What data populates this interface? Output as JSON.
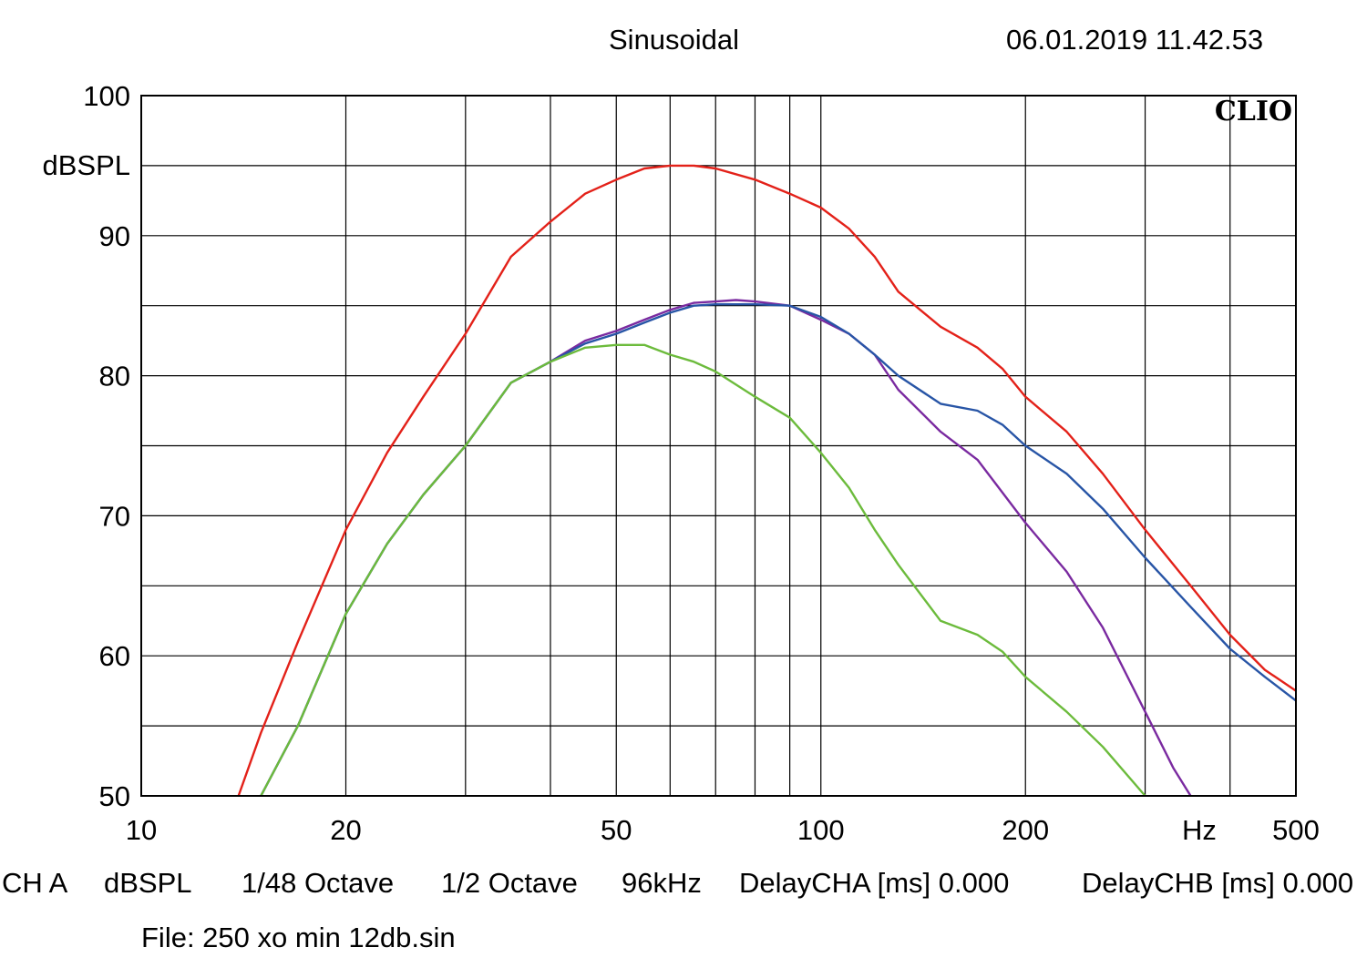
{
  "header": {
    "title": "Sinusoidal",
    "timestamp": "06.01.2019 11.42.53"
  },
  "footer": {
    "channel": "CH A",
    "unit": "dBSPL",
    "resolution": "1/48 Octave",
    "smoothing": "1/2 Octave",
    "sample_rate": "96kHz",
    "delay_a": "DelayCHA [ms] 0.000",
    "delay_b": "DelayCHB [ms] 0.000",
    "file": "File: 250 xo min 12db.sin"
  },
  "brand": "CLIO",
  "chart_data": {
    "type": "line",
    "title": "Sinusoidal",
    "xlabel": "Hz",
    "ylabel": "dBSPL",
    "xscale": "log",
    "xlim": [
      10,
      500
    ],
    "ylim": [
      50,
      100
    ],
    "grid": true,
    "x_tick_labels": [
      {
        "value": 10,
        "label": "10"
      },
      {
        "value": 20,
        "label": "20"
      },
      {
        "value": 50,
        "label": "50"
      },
      {
        "value": 100,
        "label": "100"
      },
      {
        "value": 200,
        "label": "200"
      },
      {
        "value": 500,
        "label": "500"
      }
    ],
    "x_grid": [
      20,
      30,
      40,
      50,
      60,
      70,
      80,
      90,
      100,
      200,
      300,
      400
    ],
    "y_tick_labels": [
      {
        "value": 100,
        "label": "100"
      },
      {
        "value": 90,
        "label": "90"
      },
      {
        "value": 80,
        "label": "80"
      },
      {
        "value": 70,
        "label": "70"
      },
      {
        "value": 60,
        "label": "60"
      },
      {
        "value": 50,
        "label": "50"
      }
    ],
    "y_grid": [
      55,
      60,
      65,
      70,
      75,
      80,
      85,
      90,
      95
    ],
    "series": [
      {
        "color": "#e32119",
        "points": [
          [
            13.9,
            50
          ],
          [
            15,
            54.5
          ],
          [
            17,
            61
          ],
          [
            20,
            69
          ],
          [
            23,
            74.5
          ],
          [
            26,
            78.5
          ],
          [
            30,
            83
          ],
          [
            35,
            88.5
          ],
          [
            40,
            91
          ],
          [
            45,
            93
          ],
          [
            50,
            94
          ],
          [
            55,
            94.8
          ],
          [
            60,
            95
          ],
          [
            65,
            95
          ],
          [
            70,
            94.8
          ],
          [
            80,
            94
          ],
          [
            90,
            93
          ],
          [
            100,
            92
          ],
          [
            110,
            90.5
          ],
          [
            120,
            88.5
          ],
          [
            130,
            86
          ],
          [
            150,
            83.5
          ],
          [
            170,
            82
          ],
          [
            185,
            80.5
          ],
          [
            200,
            78.5
          ],
          [
            230,
            76
          ],
          [
            260,
            73
          ],
          [
            300,
            69
          ],
          [
            350,
            65
          ],
          [
            400,
            61.5
          ],
          [
            450,
            59
          ],
          [
            500,
            57.5
          ]
        ]
      },
      {
        "color": "#7a2aa0",
        "points": [
          [
            15,
            50
          ],
          [
            17,
            55
          ],
          [
            20,
            63
          ],
          [
            23,
            68
          ],
          [
            26,
            71.5
          ],
          [
            30,
            75
          ],
          [
            35,
            79.5
          ],
          [
            40,
            81
          ],
          [
            45,
            82.5
          ],
          [
            50,
            83.2
          ],
          [
            55,
            84
          ],
          [
            60,
            84.7
          ],
          [
            65,
            85.2
          ],
          [
            70,
            85.3
          ],
          [
            75,
            85.4
          ],
          [
            80,
            85.3
          ],
          [
            90,
            85
          ],
          [
            100,
            84
          ],
          [
            110,
            83
          ],
          [
            120,
            81.5
          ],
          [
            130,
            79
          ],
          [
            150,
            76
          ],
          [
            170,
            74
          ],
          [
            200,
            69.5
          ],
          [
            230,
            66
          ],
          [
            260,
            62
          ],
          [
            300,
            56
          ],
          [
            330,
            52
          ],
          [
            350,
            50
          ]
        ]
      },
      {
        "color": "#2855a6",
        "points": [
          [
            15,
            50
          ],
          [
            17,
            55
          ],
          [
            20,
            63
          ],
          [
            23,
            68
          ],
          [
            26,
            71.5
          ],
          [
            30,
            75
          ],
          [
            35,
            79.5
          ],
          [
            40,
            81
          ],
          [
            45,
            82.3
          ],
          [
            50,
            83
          ],
          [
            55,
            83.8
          ],
          [
            60,
            84.5
          ],
          [
            65,
            85
          ],
          [
            70,
            85.1
          ],
          [
            75,
            85.1
          ],
          [
            80,
            85.1
          ],
          [
            90,
            85
          ],
          [
            100,
            84.2
          ],
          [
            110,
            83
          ],
          [
            120,
            81.5
          ],
          [
            130,
            80
          ],
          [
            150,
            78
          ],
          [
            170,
            77.5
          ],
          [
            185,
            76.5
          ],
          [
            200,
            75
          ],
          [
            230,
            73
          ],
          [
            260,
            70.5
          ],
          [
            300,
            67
          ],
          [
            350,
            63.5
          ],
          [
            400,
            60.5
          ],
          [
            450,
            58.5
          ],
          [
            500,
            56.8
          ]
        ]
      },
      {
        "color": "#6cbb3c",
        "points": [
          [
            15,
            50
          ],
          [
            17,
            55
          ],
          [
            20,
            63
          ],
          [
            23,
            68
          ],
          [
            26,
            71.5
          ],
          [
            30,
            75
          ],
          [
            35,
            79.5
          ],
          [
            40,
            81
          ],
          [
            45,
            82
          ],
          [
            50,
            82.2
          ],
          [
            55,
            82.2
          ],
          [
            60,
            81.5
          ],
          [
            65,
            81
          ],
          [
            70,
            80.3
          ],
          [
            80,
            78.5
          ],
          [
            90,
            77
          ],
          [
            100,
            74.5
          ],
          [
            110,
            72
          ],
          [
            120,
            69
          ],
          [
            130,
            66.5
          ],
          [
            150,
            62.5
          ],
          [
            170,
            61.5
          ],
          [
            185,
            60.3
          ],
          [
            200,
            58.5
          ],
          [
            230,
            56
          ],
          [
            260,
            53.5
          ],
          [
            300,
            50
          ]
        ]
      }
    ]
  }
}
